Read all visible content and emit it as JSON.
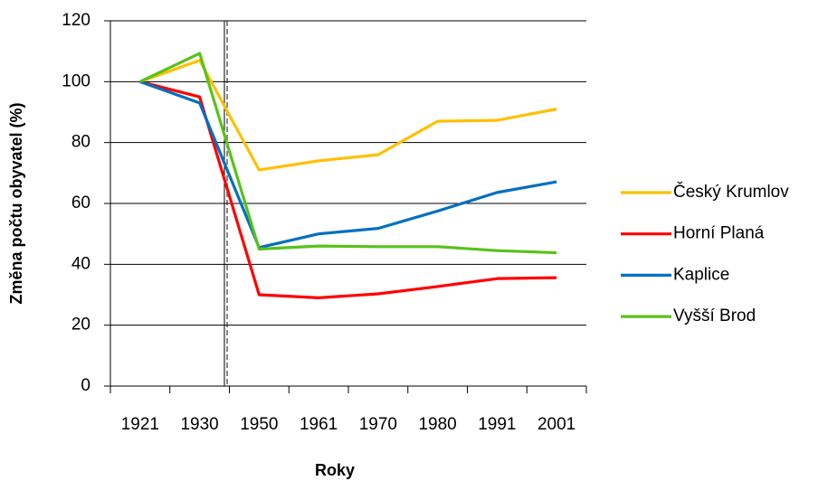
{
  "chart_data": {
    "type": "line",
    "x_label": "Roky",
    "y_label": "Změna počtu obyvatel (%)",
    "categories": [
      "1921",
      "1930",
      "1950",
      "1961",
      "1970",
      "1980",
      "1991",
      "2001"
    ],
    "series": [
      {
        "name": "Český Krumlov",
        "color": "#ffc000",
        "values": [
          100,
          107,
          71,
          74,
          76,
          87,
          87.3,
          91
        ]
      },
      {
        "name": "Horní Planá",
        "color": "#ff0000",
        "values": [
          100,
          95,
          30,
          29,
          30.3,
          32.7,
          35.3,
          35.6
        ]
      },
      {
        "name": "Kaplice",
        "color": "#0070c0",
        "values": [
          100,
          93,
          45.5,
          50,
          51.8,
          57.5,
          63.6,
          67.1
        ]
      },
      {
        "name": "Vyšší Brod",
        "color": "#58c21a",
        "values": [
          100,
          109.3,
          45,
          46,
          45.8,
          45.8,
          44.5,
          43.8
        ]
      }
    ],
    "ylim": [
      0,
      120
    ],
    "yticks": [
      0,
      20,
      40,
      60,
      80,
      100,
      120
    ],
    "grid": true,
    "legend": "right"
  }
}
